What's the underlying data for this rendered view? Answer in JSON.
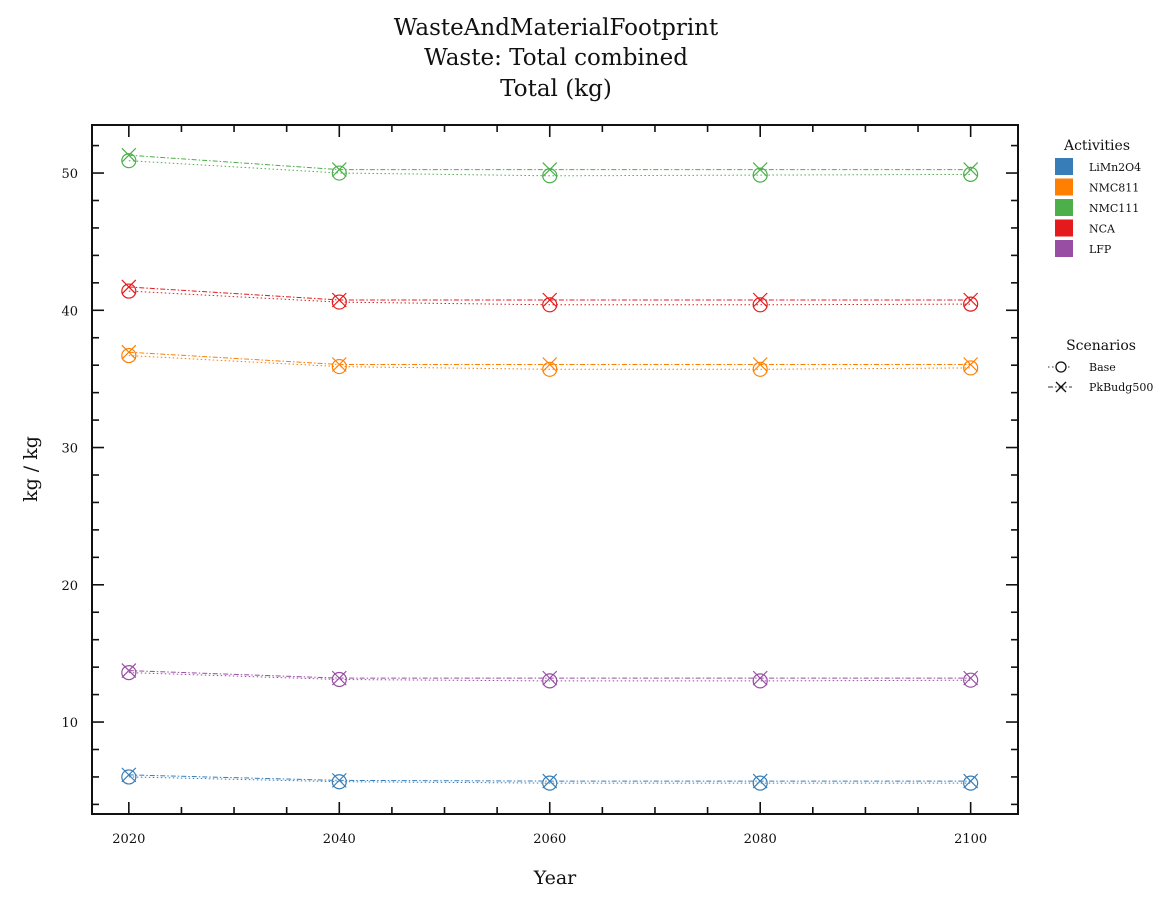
{
  "chart_data": {
    "type": "line",
    "title": [
      "WasteAndMaterialFootprint",
      "Waste: Total combined",
      "Total (kg)"
    ],
    "xlabel": "Year",
    "ylabel": "kg / kg",
    "x": [
      2020,
      2040,
      2060,
      2080,
      2100
    ],
    "xticks": [
      2020,
      2040,
      2060,
      2080,
      2100
    ],
    "yticks": [
      10,
      20,
      30,
      40,
      50
    ],
    "xlim": [
      2016.5,
      2104.5
    ],
    "ylim": [
      3.3,
      53.5
    ],
    "grid": false,
    "legends": {
      "activities": {
        "title": "Activities",
        "placement": "top-right outside",
        "items": [
          {
            "name": "LiMn2O4",
            "color": "#377eb8"
          },
          {
            "name": "NMC811",
            "color": "#ff7f00"
          },
          {
            "name": "NMC111",
            "color": "#4daf4a"
          },
          {
            "name": "NCA",
            "color": "#e41a1c"
          },
          {
            "name": "LFP",
            "color": "#984ea3"
          }
        ]
      },
      "scenarios": {
        "title": "Scenarios",
        "placement": "right outside",
        "items": [
          {
            "name": "Base",
            "marker": "circle",
            "line": "dotted"
          },
          {
            "name": "PkBudg500",
            "marker": "x",
            "line": "dashdot"
          }
        ]
      }
    },
    "series": [
      {
        "activity": "LiMn2O4",
        "scenario": "Base",
        "color": "#377eb8",
        "marker": "circle",
        "values": [
          6.0,
          5.65,
          5.55,
          5.55,
          5.55
        ]
      },
      {
        "activity": "LiMn2O4",
        "scenario": "PkBudg500",
        "color": "#377eb8",
        "marker": "x",
        "values": [
          6.15,
          5.75,
          5.7,
          5.7,
          5.7
        ]
      },
      {
        "activity": "NMC811",
        "scenario": "Base",
        "color": "#ff7f00",
        "marker": "circle",
        "values": [
          36.7,
          35.9,
          35.7,
          35.7,
          35.8
        ]
      },
      {
        "activity": "NMC811",
        "scenario": "PkBudg500",
        "color": "#ff7f00",
        "marker": "x",
        "values": [
          36.95,
          36.05,
          36.05,
          36.05,
          36.05
        ]
      },
      {
        "activity": "NMC111",
        "scenario": "Base",
        "color": "#4daf4a",
        "marker": "circle",
        "values": [
          50.9,
          50.0,
          49.8,
          49.85,
          49.9
        ]
      },
      {
        "activity": "NMC111",
        "scenario": "PkBudg500",
        "color": "#4daf4a",
        "marker": "x",
        "values": [
          51.3,
          50.25,
          50.25,
          50.25,
          50.25
        ]
      },
      {
        "activity": "NCA",
        "scenario": "Base",
        "color": "#e41a1c",
        "marker": "circle",
        "values": [
          41.4,
          40.6,
          40.4,
          40.4,
          40.45
        ]
      },
      {
        "activity": "NCA",
        "scenario": "PkBudg500",
        "color": "#e41a1c",
        "marker": "x",
        "values": [
          41.7,
          40.75,
          40.75,
          40.75,
          40.75
        ]
      },
      {
        "activity": "LFP",
        "scenario": "Base",
        "color": "#984ea3",
        "marker": "circle",
        "values": [
          13.6,
          13.1,
          13.0,
          13.0,
          13.05
        ]
      },
      {
        "activity": "LFP",
        "scenario": "PkBudg500",
        "color": "#984ea3",
        "marker": "x",
        "values": [
          13.75,
          13.2,
          13.2,
          13.2,
          13.2
        ]
      }
    ]
  }
}
